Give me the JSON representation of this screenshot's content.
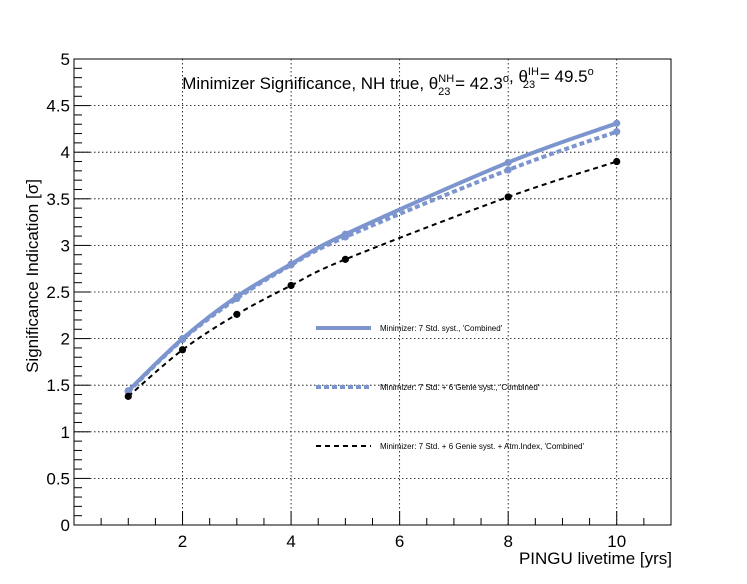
{
  "chart_data": {
    "type": "line",
    "title": {
      "text": "Minimizer Significance, NH true, ",
      "theta1": {
        "symbol": "θ",
        "sub": "23",
        "sup": "NH",
        "value": " =  42.3",
        "unit": "o"
      },
      "separator": ", ",
      "theta2": {
        "symbol": "θ",
        "sub": "23",
        "sup": "IH",
        "value": " = 49.5",
        "unit": "o"
      }
    },
    "xlabel": "PINGU livetime [yrs]",
    "ylabel": "Significance Indication [σ]",
    "xlim": [
      0,
      11
    ],
    "ylim": [
      0,
      5
    ],
    "xticks": [
      2,
      4,
      6,
      8,
      10
    ],
    "xtick_labels": [
      "2",
      "4",
      "6",
      "8",
      "10"
    ],
    "yticks": [
      0,
      0.5,
      1,
      1.5,
      2,
      2.5,
      3,
      3.5,
      4,
      4.5,
      5
    ],
    "ytick_labels": [
      "0",
      "0.5",
      "1",
      "1.5",
      "2",
      "2.5",
      "3",
      "3.5",
      "4",
      "4.5",
      "5"
    ],
    "grid": true,
    "legend_position": "center-right",
    "series": [
      {
        "name": "Minimizer: 7 Std. syst., 'Combined'",
        "x": [
          1,
          2,
          3,
          4,
          5,
          8,
          10
        ],
        "y": [
          1.44,
          2.0,
          2.45,
          2.8,
          3.12,
          3.89,
          4.31
        ],
        "color": "#7d95cf",
        "style": "solid"
      },
      {
        "name": "Minimizer: 7 Std. + 6 Genie syst., 'Combined'",
        "x": [
          1,
          2,
          3,
          4,
          5,
          8,
          10
        ],
        "y": [
          1.43,
          1.99,
          2.43,
          2.79,
          3.09,
          3.81,
          4.22
        ],
        "color": "#7d95cf",
        "style": "dotted"
      },
      {
        "name": "Minimizer: 7 Std. + 6 Genie syst. + Atm.Index, 'Combined'",
        "x": [
          1,
          2,
          3,
          4,
          5,
          8,
          10
        ],
        "y": [
          1.38,
          1.88,
          2.26,
          2.57,
          2.85,
          3.52,
          3.9
        ],
        "color": "#000000",
        "style": "dashed"
      }
    ]
  }
}
